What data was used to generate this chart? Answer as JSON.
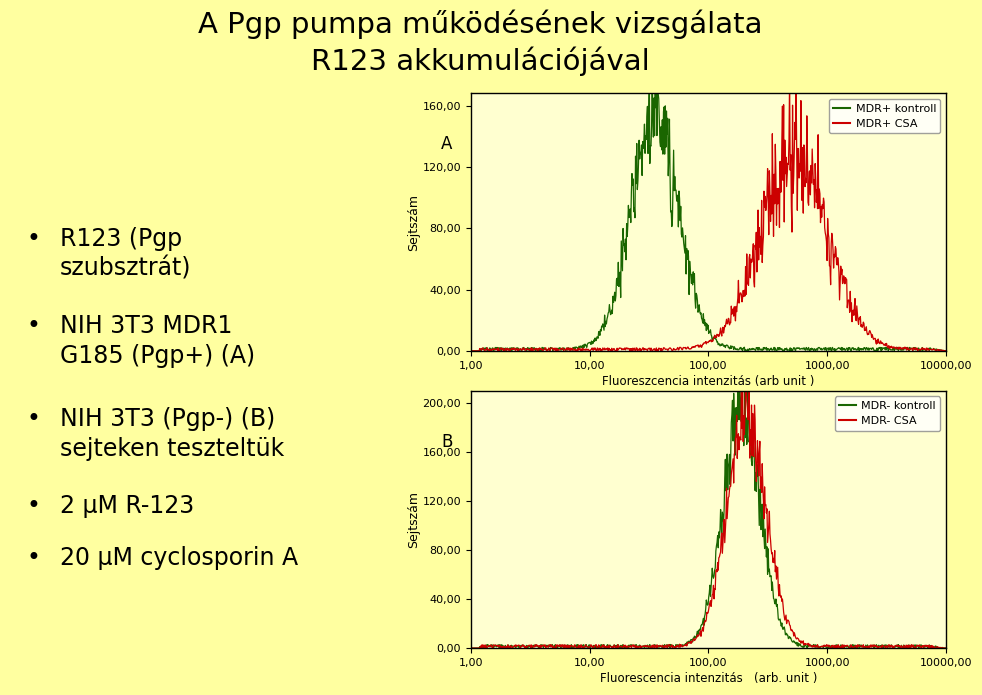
{
  "title_line1": "A Pgp pumpa működésének vizsgálata",
  "title_line2": "R123 akkumulációjával",
  "background_color": "#ffffa0",
  "plot_bg": "#ffffd0",
  "bullet_points_line1": [
    "R123 (Pgp",
    "NIH 3T3 MDR1",
    "NIH 3T3 (Pgp-) (B)",
    "2 μM R-123",
    "20 μM cyclosporin A"
  ],
  "bullet_points_line2": [
    "szubsztrát)",
    "G185 (Pgp+) (A)",
    "sejteken teszteltük",
    "",
    ""
  ],
  "plot_A": {
    "ylabel": "Sejtszám",
    "xlabel": "Fluoreszcencia intenzitás (arb unit )",
    "yticks": [
      0.0,
      40.0,
      80.0,
      120.0,
      160.0
    ],
    "xticks": [
      1.0,
      10.0,
      100.0,
      1000.0,
      10000.0
    ],
    "xtick_labels": [
      "1,00",
      "10,00",
      "100,00",
      "1000,00",
      "10000,00"
    ],
    "ytick_labels": [
      "0,00",
      "40,00",
      "80,00",
      "120,00",
      "160,00"
    ],
    "ylim": [
      0,
      168
    ],
    "legend": [
      "MDR+ kontroll",
      "MDR+ CSA"
    ],
    "colors": [
      "#1a6600",
      "#cc0000"
    ]
  },
  "plot_B": {
    "ylabel": "Sejtszám",
    "xlabel": "Fluorescencia intenzitás   (arb. unit )",
    "yticks": [
      0.0,
      40.0,
      80.0,
      120.0,
      160.0,
      200.0
    ],
    "xticks": [
      1.0,
      10.0,
      100.0,
      1000.0,
      10000.0
    ],
    "xtick_labels": [
      "1,00",
      "10,00",
      "100,00",
      "1000,00",
      "10000,00"
    ],
    "ytick_labels": [
      "0,00",
      "40,00",
      "80,00",
      "120,00",
      "160,00",
      "200,00"
    ],
    "ylim": [
      0,
      210
    ],
    "legend": [
      "MDR- kontroll",
      "MDR- CSA"
    ],
    "colors": [
      "#1a6600",
      "#cc0000"
    ]
  }
}
